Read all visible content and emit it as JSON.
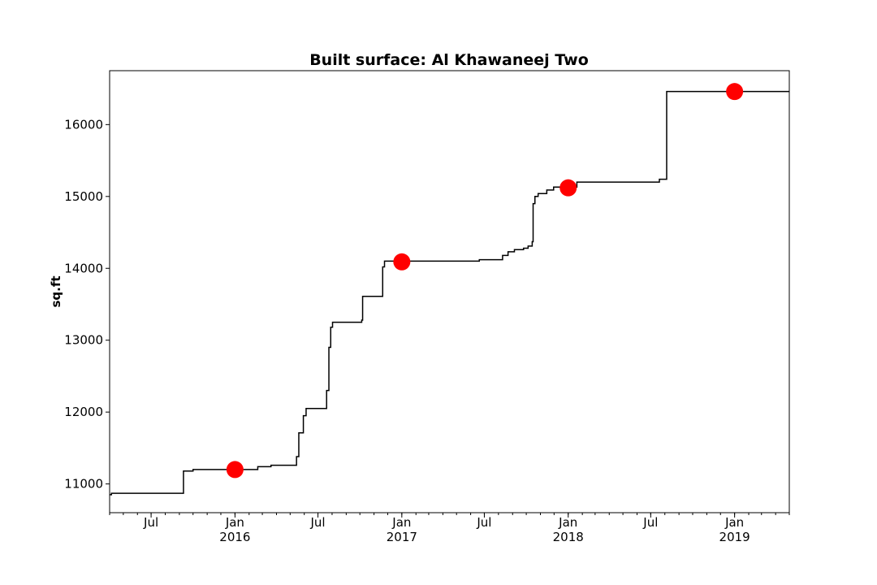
{
  "chart_data": {
    "type": "line",
    "title": "Built surface: Al Khawaneej Two",
    "xlabel": "",
    "ylabel": "sq.ft",
    "xlim": [
      "2015-04-01",
      "2019-05-01"
    ],
    "ylim": [
      10600,
      16750
    ],
    "grid": false,
    "y_ticks": [
      11000,
      12000,
      13000,
      14000,
      15000,
      16000
    ],
    "x_ticks": [
      {
        "date": "2015-07-01",
        "label": "Jul",
        "sublabel": ""
      },
      {
        "date": "2016-01-01",
        "label": "Jan",
        "sublabel": "2016"
      },
      {
        "date": "2016-07-01",
        "label": "Jul",
        "sublabel": ""
      },
      {
        "date": "2017-01-01",
        "label": "Jan",
        "sublabel": "2017"
      },
      {
        "date": "2017-07-01",
        "label": "Jul",
        "sublabel": ""
      },
      {
        "date": "2018-01-01",
        "label": "Jan",
        "sublabel": "2018"
      },
      {
        "date": "2018-07-01",
        "label": "Jul",
        "sublabel": ""
      },
      {
        "date": "2019-01-01",
        "label": "Jan",
        "sublabel": "2019"
      }
    ],
    "series": [
      {
        "line_color": "#000000",
        "step": true,
        "points": [
          {
            "x": "2015-04-01",
            "y": 10850
          },
          {
            "x": "2015-04-05",
            "y": 10870
          },
          {
            "x": "2015-09-10",
            "y": 11180
          },
          {
            "x": "2015-10-01",
            "y": 11200
          },
          {
            "x": "2016-02-20",
            "y": 11240
          },
          {
            "x": "2016-03-20",
            "y": 11260
          },
          {
            "x": "2016-05-15",
            "y": 11380
          },
          {
            "x": "2016-05-20",
            "y": 11710
          },
          {
            "x": "2016-05-30",
            "y": 11950
          },
          {
            "x": "2016-06-05",
            "y": 12050
          },
          {
            "x": "2016-07-20",
            "y": 12300
          },
          {
            "x": "2016-07-25",
            "y": 12900
          },
          {
            "x": "2016-07-29",
            "y": 13180
          },
          {
            "x": "2016-08-02",
            "y": 13250
          },
          {
            "x": "2016-10-05",
            "y": 13280
          },
          {
            "x": "2016-10-07",
            "y": 13610
          },
          {
            "x": "2016-11-20",
            "y": 14020
          },
          {
            "x": "2016-11-24",
            "y": 14100
          },
          {
            "x": "2017-06-20",
            "y": 14120
          },
          {
            "x": "2017-08-10",
            "y": 14180
          },
          {
            "x": "2017-08-22",
            "y": 14230
          },
          {
            "x": "2017-09-05",
            "y": 14260
          },
          {
            "x": "2017-09-25",
            "y": 14280
          },
          {
            "x": "2017-10-05",
            "y": 14310
          },
          {
            "x": "2017-10-14",
            "y": 14370
          },
          {
            "x": "2017-10-16",
            "y": 14900
          },
          {
            "x": "2017-10-20",
            "y": 15000
          },
          {
            "x": "2017-10-27",
            "y": 15040
          },
          {
            "x": "2017-11-15",
            "y": 15090
          },
          {
            "x": "2017-11-30",
            "y": 15130
          },
          {
            "x": "2018-01-20",
            "y": 15200
          },
          {
            "x": "2018-07-20",
            "y": 15240
          },
          {
            "x": "2018-08-05",
            "y": 16460
          },
          {
            "x": "2019-05-01",
            "y": 16460
          }
        ]
      },
      {
        "marker_color": "#ff0000",
        "markers_only": true,
        "points": [
          {
            "x": "2016-01-01",
            "y": 11200
          },
          {
            "x": "2017-01-01",
            "y": 14090
          },
          {
            "x": "2018-01-01",
            "y": 15120
          },
          {
            "x": "2019-01-01",
            "y": 16460
          }
        ]
      }
    ]
  }
}
